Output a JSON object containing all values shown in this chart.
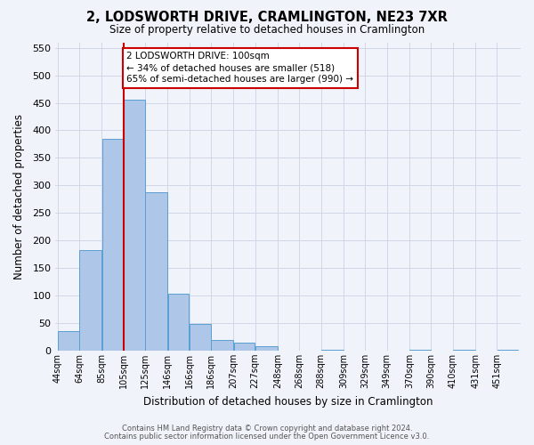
{
  "title": "2, LODSWORTH DRIVE, CRAMLINGTON, NE23 7XR",
  "subtitle": "Size of property relative to detached houses in Cramlington",
  "xlabel": "Distribution of detached houses by size in Cramlington",
  "ylabel": "Number of detached properties",
  "footer_line1": "Contains HM Land Registry data © Crown copyright and database right 2024.",
  "footer_line2": "Contains public sector information licensed under the Open Government Licence v3.0.",
  "bin_labels": [
    "44sqm",
    "64sqm",
    "85sqm",
    "105sqm",
    "125sqm",
    "146sqm",
    "166sqm",
    "186sqm",
    "207sqm",
    "227sqm",
    "248sqm",
    "268sqm",
    "288sqm",
    "309sqm",
    "329sqm",
    "349sqm",
    "370sqm",
    "390sqm",
    "410sqm",
    "431sqm",
    "451sqm"
  ],
  "bar_values": [
    35,
    183,
    385,
    455,
    288,
    104,
    49,
    20,
    15,
    8,
    0,
    0,
    2,
    0,
    0,
    0,
    2,
    0,
    2,
    0,
    2
  ],
  "bar_color": "#aec6e8",
  "bar_edge_color": "#5a9fd4",
  "grid_color": "#d0d8e8",
  "bg_color": "#f0f4fa",
  "vline_x": 105,
  "vline_color": "#cc0000",
  "annotation_text": "2 LODSWORTH DRIVE: 100sqm\n← 34% of detached houses are smaller (518)\n65% of semi-detached houses are larger (990) →",
  "annotation_box_color": "#ffffff",
  "annotation_box_edge_color": "#cc0000",
  "ylim": [
    0,
    560
  ],
  "yticks": [
    0,
    50,
    100,
    150,
    200,
    250,
    300,
    350,
    400,
    450,
    500,
    550
  ]
}
